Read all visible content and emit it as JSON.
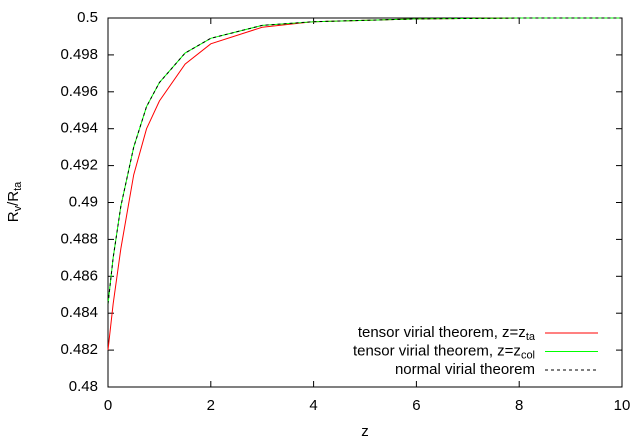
{
  "chart_data": {
    "type": "line",
    "xlabel": "z",
    "ylabel": [
      "R",
      "v",
      "/R",
      "ta"
    ],
    "x": [
      0,
      0.1,
      0.25,
      0.5,
      0.75,
      1,
      1.5,
      2,
      3,
      4,
      6,
      8,
      10
    ],
    "series": [
      {
        "name": "tensor virial theorem, z=z",
        "name_sub": "ta",
        "color": "#ff0000",
        "dash": false,
        "values": [
          0.482,
          0.4845,
          0.4875,
          0.4915,
          0.494,
          0.4955,
          0.4975,
          0.4986,
          0.4995,
          0.4998,
          0.49995,
          0.5,
          0.5
        ]
      },
      {
        "name": "tensor virial theorem, z=z",
        "name_sub": "col",
        "color": "#00ff00",
        "dash": false,
        "values": [
          0.4845,
          0.487,
          0.4898,
          0.493,
          0.4952,
          0.4965,
          0.4981,
          0.4989,
          0.4996,
          0.4998,
          0.49995,
          0.5,
          0.5
        ]
      },
      {
        "name": "normal virial theorem",
        "color": "#000000",
        "dash": true,
        "values": [
          0.4845,
          0.487,
          0.4898,
          0.493,
          0.4952,
          0.4965,
          0.4981,
          0.4989,
          0.4996,
          0.4998,
          0.49995,
          0.5,
          0.5
        ]
      }
    ],
    "xlim": [
      0,
      10
    ],
    "xticks": [
      0,
      2,
      4,
      6,
      8,
      10
    ],
    "ylim": [
      0.48,
      0.5
    ],
    "yticks": [
      0.48,
      0.482,
      0.484,
      0.486,
      0.488,
      0.49,
      0.492,
      0.494,
      0.496,
      0.498,
      0.5
    ],
    "legend": "lower right",
    "grid": false
  }
}
